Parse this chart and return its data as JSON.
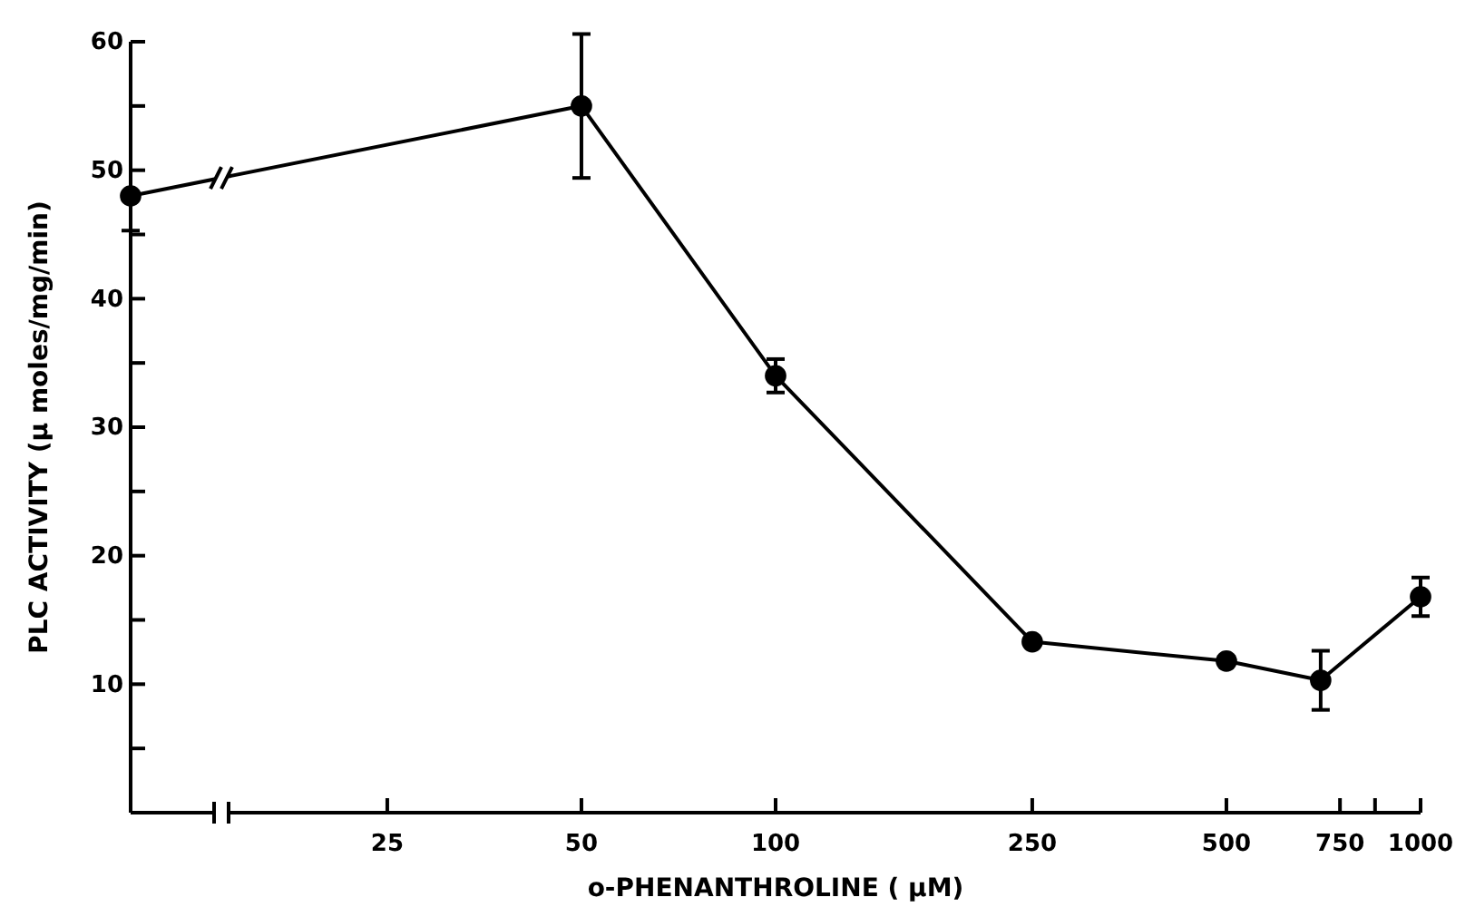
{
  "chart_data": {
    "type": "line",
    "xlabel": "o-PHENANTHROLINE ( µM)",
    "ylabel": "PLC ACTIVITY (µ moles/mg/min)",
    "log": "x",
    "xlim": [
      10,
      1000
    ],
    "ylim": [
      0,
      60
    ],
    "xticks": [
      25,
      50,
      100,
      250,
      500,
      750,
      {
        "value": 850,
        "label": null
      },
      1000
    ],
    "yticks": [
      {
        "value": 5,
        "label": null
      },
      10,
      {
        "value": 15,
        "label": null
      },
      20,
      {
        "value": 25,
        "label": null
      },
      30,
      {
        "value": 35,
        "label": null
      },
      40,
      {
        "value": 45,
        "label": null
      },
      50,
      {
        "value": 55,
        "label": null
      },
      60
    ],
    "marker": "circle",
    "line_style": "solid",
    "grid": false,
    "series": [
      {
        "color": "#000000",
        "x": [
          10,
          50,
          100,
          250,
          500,
          700,
          1000
        ],
        "values": [
          48,
          55,
          34,
          13.3,
          11.8,
          10.3,
          16.8
        ],
        "errors": [
          [
            45.3,
            48
          ],
          5.6,
          1.3,
          null,
          null,
          2.3,
          1.5
        ]
      }
    ]
  }
}
